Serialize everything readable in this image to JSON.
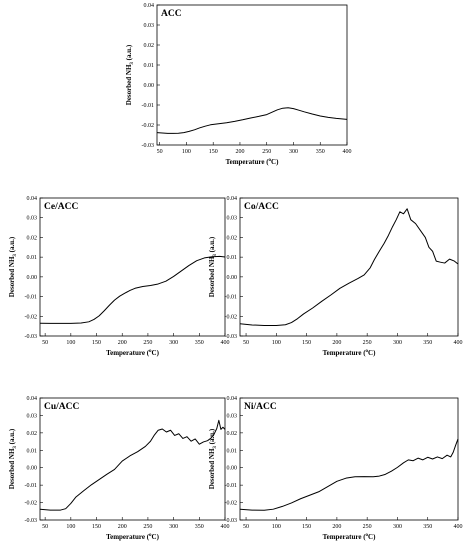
{
  "chart_data": [
    {
      "type": "line",
      "title": "ACC",
      "xlabel_main": "Temperature (",
      "xlabel_sup": "o",
      "xlabel_end": "C)",
      "ylabel_main": "Desorbed NH",
      "ylabel_sub": "3",
      "ylabel_end": " (a.u.)",
      "xlim": [
        45,
        400
      ],
      "ylim": [
        -0.03,
        0.04
      ],
      "xticks": [
        50,
        100,
        150,
        200,
        250,
        300,
        350,
        400
      ],
      "yticks": [
        -0.03,
        -0.02,
        -0.01,
        0,
        0.01,
        0.02,
        0.03,
        0.04
      ],
      "ytick_labels": [
        "-0.03",
        "-0.02",
        "-0.01",
        "0.00",
        "0.01",
        "0.02",
        "0.03",
        "0.04"
      ],
      "x": [
        45,
        55,
        65,
        75,
        85,
        95,
        105,
        115,
        125,
        135,
        145,
        160,
        175,
        190,
        205,
        220,
        235,
        250,
        260,
        270,
        280,
        290,
        300,
        310,
        320,
        335,
        350,
        365,
        380,
        400
      ],
      "y": [
        -0.0238,
        -0.024,
        -0.0242,
        -0.0242,
        -0.0241,
        -0.0238,
        -0.0232,
        -0.0224,
        -0.0214,
        -0.0206,
        -0.0199,
        -0.0194,
        -0.0189,
        -0.0182,
        -0.0174,
        -0.0165,
        -0.0157,
        -0.0148,
        -0.0136,
        -0.0124,
        -0.0116,
        -0.0114,
        -0.0118,
        -0.0126,
        -0.0134,
        -0.0145,
        -0.0155,
        -0.0162,
        -0.0167,
        -0.0172
      ]
    },
    {
      "type": "line",
      "title": "Ce/ACC",
      "xlabel_main": "Temperature (",
      "xlabel_sup": "o",
      "xlabel_end": "C)",
      "ylabel_main": "Desorbed NH",
      "ylabel_sub": "3",
      "ylabel_end": " (a.u.)",
      "xlim": [
        40,
        400
      ],
      "ylim": [
        -0.03,
        0.04
      ],
      "xticks": [
        50,
        100,
        150,
        200,
        250,
        300,
        350,
        400
      ],
      "yticks": [
        -0.03,
        -0.02,
        -0.01,
        0,
        0.01,
        0.02,
        0.03,
        0.04
      ],
      "ytick_labels": [
        "-0.03",
        "-0.02",
        "-0.01",
        "0.00",
        "0.01",
        "0.02",
        "0.03",
        "0.04"
      ],
      "x": [
        40,
        60,
        80,
        100,
        120,
        135,
        145,
        155,
        165,
        175,
        185,
        195,
        205,
        215,
        225,
        240,
        255,
        270,
        285,
        300,
        315,
        330,
        345,
        360,
        375,
        390,
        400
      ],
      "y": [
        -0.0235,
        -0.0236,
        -0.0236,
        -0.0236,
        -0.0234,
        -0.0228,
        -0.0216,
        -0.0198,
        -0.0172,
        -0.0144,
        -0.0118,
        -0.0098,
        -0.0083,
        -0.0069,
        -0.0058,
        -0.0049,
        -0.0044,
        -0.0036,
        -0.0022,
        0.0002,
        0.003,
        0.0058,
        0.0082,
        0.0096,
        0.0102,
        0.0104,
        0.0101
      ]
    },
    {
      "type": "line",
      "title": "Co/ACC",
      "xlabel_main": "Temperature (",
      "xlabel_sup": "o",
      "xlabel_end": "C)",
      "ylabel_main": "Desorbed NH",
      "ylabel_sub": "3",
      "ylabel_end": " (a.u.)",
      "xlim": [
        40,
        400
      ],
      "ylim": [
        -0.03,
        0.04
      ],
      "xticks": [
        50,
        100,
        150,
        200,
        250,
        300,
        350,
        400
      ],
      "yticks": [
        -0.03,
        -0.02,
        -0.01,
        0,
        0.01,
        0.02,
        0.03,
        0.04
      ],
      "ytick_labels": [
        "-0.03",
        "-0.02",
        "-0.01",
        "0.00",
        "0.01",
        "0.02",
        "0.03",
        "0.04"
      ],
      "x": [
        40,
        60,
        80,
        100,
        115,
        125,
        135,
        145,
        160,
        175,
        190,
        205,
        220,
        235,
        245,
        255,
        262,
        270,
        278,
        285,
        292,
        298,
        304,
        310,
        316,
        322,
        330,
        338,
        346,
        352,
        358,
        364,
        370,
        378,
        386,
        394,
        400
      ],
      "y": [
        -0.0238,
        -0.0244,
        -0.0247,
        -0.0247,
        -0.0243,
        -0.0232,
        -0.0212,
        -0.0188,
        -0.0158,
        -0.0124,
        -0.0092,
        -0.0058,
        -0.0032,
        -0.0008,
        0.001,
        0.0046,
        0.0088,
        0.013,
        0.017,
        0.021,
        0.0255,
        0.029,
        0.033,
        0.032,
        0.0345,
        0.029,
        0.027,
        0.0235,
        0.02,
        0.015,
        0.013,
        0.008,
        0.0075,
        0.007,
        0.009,
        0.008,
        0.0065
      ]
    },
    {
      "type": "line",
      "title": "Cu/ACC",
      "xlabel_main": "Temperature (",
      "xlabel_sup": "o",
      "xlabel_end": "C)",
      "ylabel_main": "Desorbed NH",
      "ylabel_sub": "3",
      "ylabel_end": " (a.u.)",
      "xlim": [
        40,
        400
      ],
      "ylim": [
        -0.03,
        0.04
      ],
      "xticks": [
        50,
        100,
        150,
        200,
        250,
        300,
        350,
        400
      ],
      "yticks": [
        -0.03,
        -0.02,
        -0.01,
        0,
        0.01,
        0.02,
        0.03,
        0.04
      ],
      "ytick_labels": [
        "-0.03",
        "-0.02",
        "-0.01",
        "0.00",
        "0.01",
        "0.02",
        "0.03",
        "0.04"
      ],
      "x": [
        40,
        60,
        80,
        90,
        100,
        110,
        125,
        140,
        155,
        170,
        185,
        200,
        215,
        230,
        245,
        255,
        262,
        270,
        278,
        286,
        294,
        302,
        310,
        318,
        326,
        334,
        342,
        350,
        358,
        366,
        372,
        378,
        384,
        388,
        392,
        396,
        400
      ],
      "y": [
        -0.0238,
        -0.0243,
        -0.0243,
        -0.0235,
        -0.0205,
        -0.0168,
        -0.0132,
        -0.0098,
        -0.0068,
        -0.0038,
        -0.001,
        0.0038,
        0.0068,
        0.0092,
        0.0122,
        0.0152,
        0.0185,
        0.0215,
        0.0222,
        0.0205,
        0.0215,
        0.0185,
        0.0195,
        0.0168,
        0.0178,
        0.0152,
        0.0165,
        0.0135,
        0.0148,
        0.0155,
        0.0168,
        0.0188,
        0.0225,
        0.0272,
        0.022,
        0.0232,
        0.022
      ]
    },
    {
      "type": "line",
      "title": "Ni/ACC",
      "xlabel_main": "Temperature (",
      "xlabel_sup": "o",
      "xlabel_end": "C)",
      "ylabel_main": "Desorbed NH",
      "ylabel_sub": "3",
      "ylabel_end": " (a.u.)",
      "xlim": [
        40,
        400
      ],
      "ylim": [
        -0.03,
        0.04
      ],
      "xticks": [
        50,
        100,
        150,
        200,
        250,
        300,
        350,
        400
      ],
      "yticks": [
        -0.03,
        -0.02,
        -0.01,
        0,
        0.01,
        0.02,
        0.03,
        0.04
      ],
      "ytick_labels": [
        "-0.03",
        "-0.02",
        "-0.01",
        "0.00",
        "0.01",
        "0.02",
        "0.03",
        "0.04"
      ],
      "x": [
        40,
        60,
        80,
        95,
        110,
        125,
        140,
        155,
        170,
        185,
        200,
        215,
        230,
        245,
        260,
        270,
        280,
        290,
        300,
        310,
        318,
        326,
        334,
        342,
        350,
        358,
        366,
        374,
        382,
        388,
        392,
        396,
        400
      ],
      "y": [
        -0.0238,
        -0.0243,
        -0.0244,
        -0.0238,
        -0.0222,
        -0.0202,
        -0.0178,
        -0.0158,
        -0.0138,
        -0.0108,
        -0.0078,
        -0.006,
        -0.0052,
        -0.0051,
        -0.0052,
        -0.0048,
        -0.0038,
        -0.002,
        0.0002,
        0.0028,
        0.0045,
        0.004,
        0.0055,
        0.0045,
        0.006,
        0.005,
        0.0062,
        0.0052,
        0.0072,
        0.0062,
        0.0088,
        0.0128,
        0.0165
      ]
    }
  ]
}
